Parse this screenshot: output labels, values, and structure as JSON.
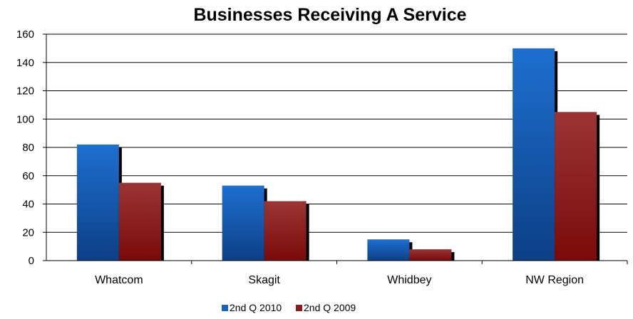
{
  "chart_data": {
    "type": "bar",
    "title": "Businesses Receiving A Service",
    "xlabel": "",
    "ylabel": "",
    "categories": [
      "Whatcom",
      "Skagit",
      "Whidbey",
      "NW Region"
    ],
    "series": [
      {
        "name": "2nd Q 2010",
        "values": [
          82,
          53,
          15,
          150
        ],
        "color": "#1a63b8"
      },
      {
        "name": "2nd Q 2009",
        "values": [
          55,
          42,
          8,
          105
        ],
        "color": "#8b1c1c"
      }
    ],
    "ylim": [
      0,
      160
    ],
    "yticks": [
      0,
      20,
      40,
      60,
      80,
      100,
      120,
      140,
      160
    ],
    "grid": true,
    "legend": "bottom"
  }
}
